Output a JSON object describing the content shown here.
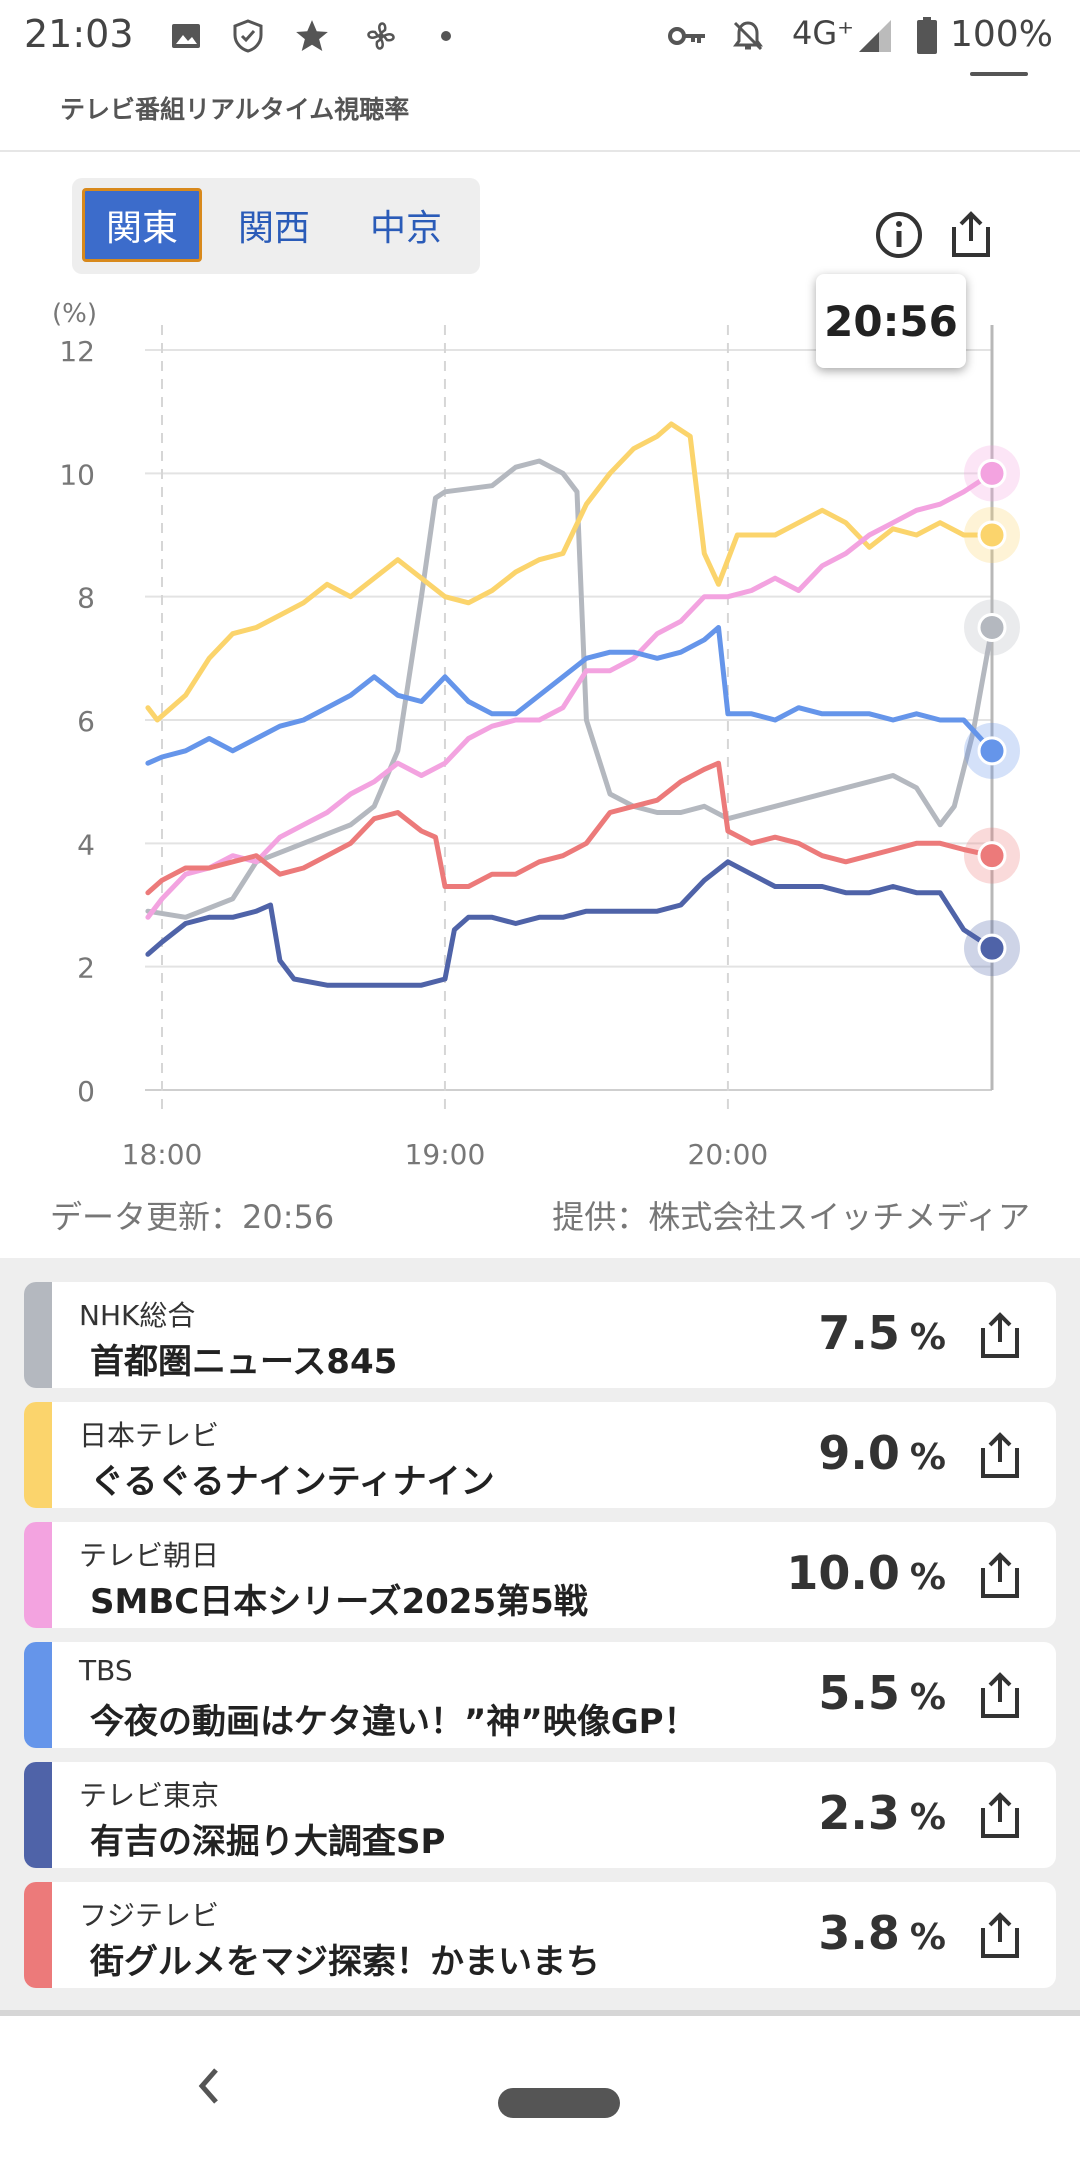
{
  "status_bar": {
    "time": "21:03",
    "network": "4G⁺",
    "battery": "100%",
    "icons": [
      "image-icon",
      "shield-icon",
      "star-icon",
      "fan-icon",
      "dot-icon",
      "key-icon",
      "bell-off-icon",
      "signal-icon",
      "battery-icon"
    ]
  },
  "header": {
    "subtitle": "テレビ番組リアルタイム視聴率"
  },
  "tabs": [
    {
      "label": "関東",
      "active": true
    },
    {
      "label": "関西",
      "active": false
    },
    {
      "label": "中京",
      "active": false
    }
  ],
  "tooltip": {
    "time": "20:56"
  },
  "chart_data": {
    "type": "line",
    "yunit_label": "(%)",
    "ylim": [
      0,
      12
    ],
    "y_ticks": [
      "0",
      "2",
      "4",
      "6",
      "8",
      "10",
      "12"
    ],
    "x_ticks": [
      "18:00",
      "19:00",
      "20:00"
    ],
    "xlim": [
      "17:57",
      "20:56"
    ],
    "grid": true,
    "series": [
      {
        "name": "NHK総合",
        "color": "#b4b8bf",
        "points": [
          [
            "17:57",
            2.9
          ],
          [
            "18:05",
            2.8
          ],
          [
            "18:15",
            3.1
          ],
          [
            "18:20",
            3.7
          ],
          [
            "18:30",
            4.0
          ],
          [
            "18:40",
            4.3
          ],
          [
            "18:45",
            4.6
          ],
          [
            "18:50",
            5.5
          ],
          [
            "18:55",
            8.0
          ],
          [
            "18:58",
            9.6
          ],
          [
            "19:00",
            9.7
          ],
          [
            "19:10",
            9.8
          ],
          [
            "19:15",
            10.1
          ],
          [
            "19:20",
            10.2
          ],
          [
            "19:25",
            10.0
          ],
          [
            "19:28",
            9.7
          ],
          [
            "19:30",
            6.0
          ],
          [
            "19:35",
            4.8
          ],
          [
            "19:40",
            4.6
          ],
          [
            "19:45",
            4.5
          ],
          [
            "19:50",
            4.5
          ],
          [
            "19:55",
            4.6
          ],
          [
            "20:00",
            4.4
          ],
          [
            "20:05",
            4.5
          ],
          [
            "20:15",
            4.7
          ],
          [
            "20:25",
            4.9
          ],
          [
            "20:30",
            5.0
          ],
          [
            "20:35",
            5.1
          ],
          [
            "20:40",
            4.9
          ],
          [
            "20:45",
            4.3
          ],
          [
            "20:48",
            4.6
          ],
          [
            "20:52",
            5.8
          ],
          [
            "20:56",
            7.5
          ]
        ]
      },
      {
        "name": "日本テレビ",
        "color": "#fbd46c",
        "points": [
          [
            "17:57",
            6.2
          ],
          [
            "17:59",
            6.0
          ],
          [
            "18:05",
            6.4
          ],
          [
            "18:10",
            7.0
          ],
          [
            "18:15",
            7.4
          ],
          [
            "18:20",
            7.5
          ],
          [
            "18:25",
            7.7
          ],
          [
            "18:30",
            7.9
          ],
          [
            "18:35",
            8.2
          ],
          [
            "18:40",
            8.0
          ],
          [
            "18:45",
            8.3
          ],
          [
            "18:50",
            8.6
          ],
          [
            "18:55",
            8.3
          ],
          [
            "19:00",
            8.0
          ],
          [
            "19:05",
            7.9
          ],
          [
            "19:10",
            8.1
          ],
          [
            "19:15",
            8.4
          ],
          [
            "19:20",
            8.6
          ],
          [
            "19:25",
            8.7
          ],
          [
            "19:30",
            9.5
          ],
          [
            "19:35",
            10.0
          ],
          [
            "19:40",
            10.4
          ],
          [
            "19:45",
            10.6
          ],
          [
            "19:48",
            10.8
          ],
          [
            "19:52",
            10.6
          ],
          [
            "19:55",
            8.7
          ],
          [
            "19:58",
            8.2
          ],
          [
            "20:02",
            9.0
          ],
          [
            "20:10",
            9.0
          ],
          [
            "20:15",
            9.2
          ],
          [
            "20:20",
            9.4
          ],
          [
            "20:25",
            9.2
          ],
          [
            "20:30",
            8.8
          ],
          [
            "20:35",
            9.1
          ],
          [
            "20:40",
            9.0
          ],
          [
            "20:45",
            9.2
          ],
          [
            "20:50",
            9.0
          ],
          [
            "20:56",
            9.0
          ]
        ]
      },
      {
        "name": "テレビ朝日",
        "color": "#f3a3e0",
        "points": [
          [
            "17:57",
            2.8
          ],
          [
            "18:00",
            3.1
          ],
          [
            "18:05",
            3.5
          ],
          [
            "18:10",
            3.6
          ],
          [
            "18:15",
            3.8
          ],
          [
            "18:20",
            3.7
          ],
          [
            "18:25",
            4.1
          ],
          [
            "18:30",
            4.3
          ],
          [
            "18:35",
            4.5
          ],
          [
            "18:40",
            4.8
          ],
          [
            "18:45",
            5.0
          ],
          [
            "18:50",
            5.3
          ],
          [
            "18:55",
            5.1
          ],
          [
            "19:00",
            5.3
          ],
          [
            "19:05",
            5.7
          ],
          [
            "19:10",
            5.9
          ],
          [
            "19:15",
            6.0
          ],
          [
            "19:20",
            6.0
          ],
          [
            "19:25",
            6.2
          ],
          [
            "19:30",
            6.8
          ],
          [
            "19:35",
            6.8
          ],
          [
            "19:40",
            7.0
          ],
          [
            "19:45",
            7.4
          ],
          [
            "19:50",
            7.6
          ],
          [
            "19:55",
            8.0
          ],
          [
            "20:00",
            8.0
          ],
          [
            "20:05",
            8.1
          ],
          [
            "20:10",
            8.3
          ],
          [
            "20:15",
            8.1
          ],
          [
            "20:20",
            8.5
          ],
          [
            "20:25",
            8.7
          ],
          [
            "20:30",
            9.0
          ],
          [
            "20:35",
            9.2
          ],
          [
            "20:40",
            9.4
          ],
          [
            "20:45",
            9.5
          ],
          [
            "20:50",
            9.7
          ],
          [
            "20:56",
            10.0
          ]
        ]
      },
      {
        "name": "TBS",
        "color": "#6595ea",
        "points": [
          [
            "17:57",
            5.3
          ],
          [
            "18:00",
            5.4
          ],
          [
            "18:05",
            5.5
          ],
          [
            "18:10",
            5.7
          ],
          [
            "18:15",
            5.5
          ],
          [
            "18:20",
            5.7
          ],
          [
            "18:25",
            5.9
          ],
          [
            "18:30",
            6.0
          ],
          [
            "18:35",
            6.2
          ],
          [
            "18:40",
            6.4
          ],
          [
            "18:45",
            6.7
          ],
          [
            "18:50",
            6.4
          ],
          [
            "18:55",
            6.3
          ],
          [
            "19:00",
            6.7
          ],
          [
            "19:05",
            6.3
          ],
          [
            "19:10",
            6.1
          ],
          [
            "19:15",
            6.1
          ],
          [
            "19:20",
            6.4
          ],
          [
            "19:25",
            6.7
          ],
          [
            "19:30",
            7.0
          ],
          [
            "19:35",
            7.1
          ],
          [
            "19:40",
            7.1
          ],
          [
            "19:45",
            7.0
          ],
          [
            "19:50",
            7.1
          ],
          [
            "19:55",
            7.3
          ],
          [
            "19:58",
            7.5
          ],
          [
            "20:00",
            6.1
          ],
          [
            "20:05",
            6.1
          ],
          [
            "20:10",
            6.0
          ],
          [
            "20:15",
            6.2
          ],
          [
            "20:20",
            6.1
          ],
          [
            "20:25",
            6.1
          ],
          [
            "20:30",
            6.1
          ],
          [
            "20:35",
            6.0
          ],
          [
            "20:40",
            6.1
          ],
          [
            "20:45",
            6.0
          ],
          [
            "20:50",
            6.0
          ],
          [
            "20:56",
            5.5
          ]
        ]
      },
      {
        "name": "テレビ東京",
        "color": "#4f63a8",
        "points": [
          [
            "17:57",
            2.2
          ],
          [
            "18:00",
            2.4
          ],
          [
            "18:05",
            2.7
          ],
          [
            "18:10",
            2.8
          ],
          [
            "18:15",
            2.8
          ],
          [
            "18:20",
            2.9
          ],
          [
            "18:23",
            3.0
          ],
          [
            "18:25",
            2.1
          ],
          [
            "18:28",
            1.8
          ],
          [
            "18:35",
            1.7
          ],
          [
            "18:40",
            1.7
          ],
          [
            "18:45",
            1.7
          ],
          [
            "18:50",
            1.7
          ],
          [
            "18:55",
            1.7
          ],
          [
            "19:00",
            1.8
          ],
          [
            "19:02",
            2.6
          ],
          [
            "19:05",
            2.8
          ],
          [
            "19:10",
            2.8
          ],
          [
            "19:15",
            2.7
          ],
          [
            "19:20",
            2.8
          ],
          [
            "19:25",
            2.8
          ],
          [
            "19:30",
            2.9
          ],
          [
            "19:35",
            2.9
          ],
          [
            "19:40",
            2.9
          ],
          [
            "19:45",
            2.9
          ],
          [
            "19:50",
            3.0
          ],
          [
            "19:55",
            3.4
          ],
          [
            "20:00",
            3.7
          ],
          [
            "20:05",
            3.5
          ],
          [
            "20:10",
            3.3
          ],
          [
            "20:15",
            3.3
          ],
          [
            "20:20",
            3.3
          ],
          [
            "20:25",
            3.2
          ],
          [
            "20:30",
            3.2
          ],
          [
            "20:35",
            3.3
          ],
          [
            "20:40",
            3.2
          ],
          [
            "20:45",
            3.2
          ],
          [
            "20:50",
            2.6
          ],
          [
            "20:56",
            2.3
          ]
        ]
      },
      {
        "name": "フジテレビ",
        "color": "#ec7a7a",
        "points": [
          [
            "17:57",
            3.2
          ],
          [
            "18:00",
            3.4
          ],
          [
            "18:05",
            3.6
          ],
          [
            "18:10",
            3.6
          ],
          [
            "18:15",
            3.7
          ],
          [
            "18:20",
            3.8
          ],
          [
            "18:25",
            3.5
          ],
          [
            "18:30",
            3.6
          ],
          [
            "18:35",
            3.8
          ],
          [
            "18:40",
            4.0
          ],
          [
            "18:45",
            4.4
          ],
          [
            "18:50",
            4.5
          ],
          [
            "18:55",
            4.2
          ],
          [
            "18:58",
            4.1
          ],
          [
            "19:00",
            3.3
          ],
          [
            "19:05",
            3.3
          ],
          [
            "19:10",
            3.5
          ],
          [
            "19:15",
            3.5
          ],
          [
            "19:20",
            3.7
          ],
          [
            "19:25",
            3.8
          ],
          [
            "19:30",
            4.0
          ],
          [
            "19:35",
            4.5
          ],
          [
            "19:40",
            4.6
          ],
          [
            "19:45",
            4.7
          ],
          [
            "19:50",
            5.0
          ],
          [
            "19:55",
            5.2
          ],
          [
            "19:58",
            5.3
          ],
          [
            "20:00",
            4.2
          ],
          [
            "20:05",
            4.0
          ],
          [
            "20:10",
            4.1
          ],
          [
            "20:15",
            4.0
          ],
          [
            "20:20",
            3.8
          ],
          [
            "20:25",
            3.7
          ],
          [
            "20:30",
            3.8
          ],
          [
            "20:35",
            3.9
          ],
          [
            "20:40",
            4.0
          ],
          [
            "20:45",
            4.0
          ],
          [
            "20:50",
            3.9
          ],
          [
            "20:56",
            3.8
          ]
        ]
      }
    ]
  },
  "meta": {
    "updated": "データ更新：20:56",
    "provider": "提供：株式会社スイッチメディア"
  },
  "programs": [
    {
      "station": "NHK総合",
      "program": "首都圏ニュース845",
      "rating": "7.5",
      "unit": "%",
      "color": "#b4b8bf"
    },
    {
      "station": "日本テレビ",
      "program": "ぐるぐるナインティナイン",
      "rating": "9.0",
      "unit": "%",
      "color": "#fbd46c"
    },
    {
      "station": "テレビ朝日",
      "program": "SMBC日本シリーズ2025第5戦",
      "rating": "10.0",
      "unit": "%",
      "color": "#f3a3e0"
    },
    {
      "station": "TBS",
      "program": "今夜の動画はケタ違い！”神”映像GP！",
      "rating": "5.5",
      "unit": "%",
      "color": "#6595ea"
    },
    {
      "station": "テレビ東京",
      "program": "有吉の深掘り大調査SP",
      "rating": "2.3",
      "unit": "%",
      "color": "#4f63a8"
    },
    {
      "station": "フジテレビ",
      "program": "街グルメをマジ探索！かまいまち",
      "rating": "3.8",
      "unit": "%",
      "color": "#ec7a7a"
    }
  ]
}
